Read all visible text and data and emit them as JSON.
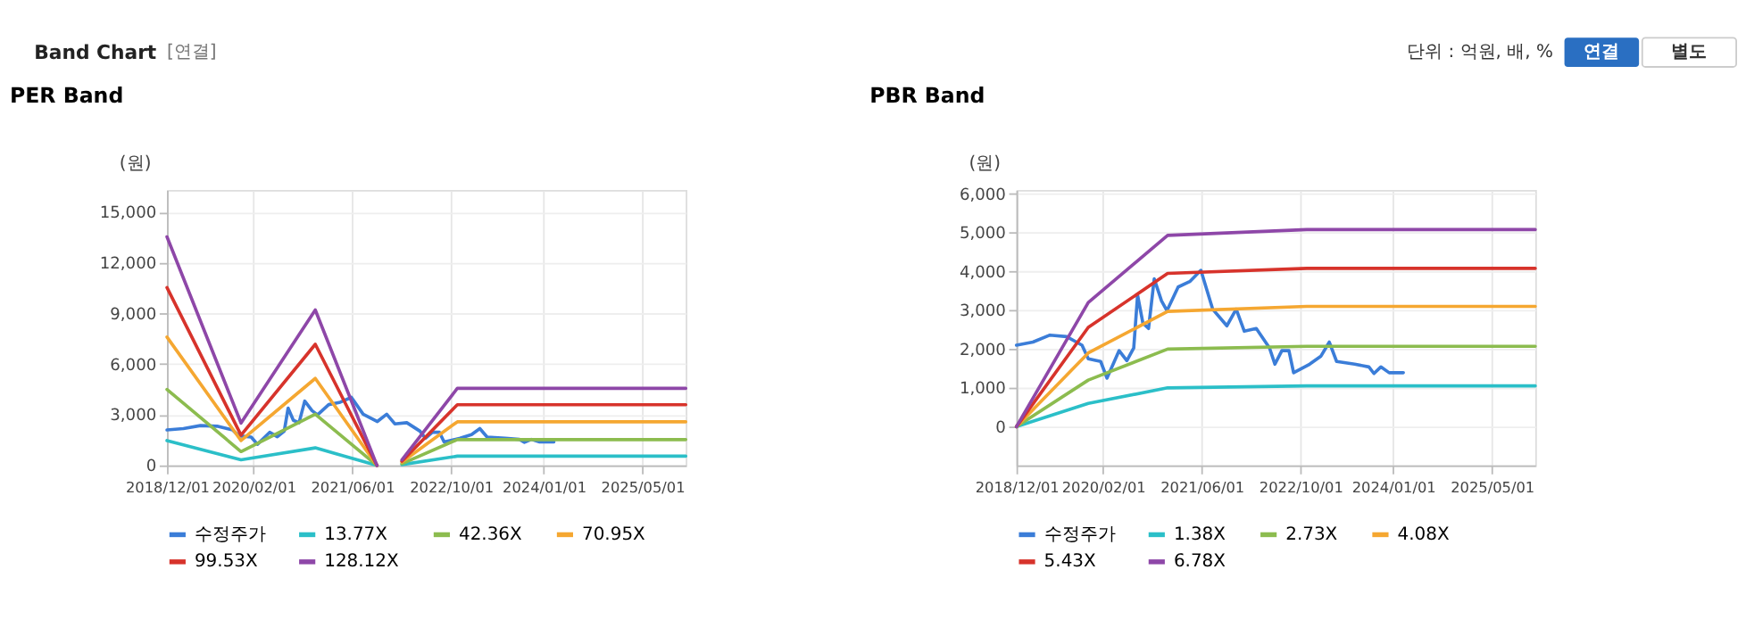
{
  "chart_data": [
    {
      "type": "line",
      "title": "PER Band",
      "ylabel": "(원)",
      "legend": "bottom",
      "grid": true,
      "annotations": [
        "Band Chart",
        "[연결]",
        "단위 : 억원, 배, %",
        "연결",
        "별도"
      ],
      "xlim": [
        "2018-12-01",
        "2025-12-01"
      ],
      "xticks": [
        {
          "value": "2018-12-01",
          "label": "2018/12/01"
        },
        {
          "value": "2020-02-01",
          "label": "2020/02/01"
        },
        {
          "value": "2021-06-01",
          "label": "2021/06/01"
        },
        {
          "value": "2022-10-01",
          "label": "2022/10/01"
        },
        {
          "value": "2024-01-01",
          "label": "2024/01/01"
        },
        {
          "value": "2025-05-01",
          "label": "2025/05/01"
        }
      ],
      "ylim": [
        0,
        16300
      ],
      "yticks": [
        {
          "value": 0,
          "label": "0"
        },
        {
          "value": 3000,
          "label": "3,000"
        },
        {
          "value": 6000,
          "label": "6,000"
        },
        {
          "value": 9000,
          "label": "9,000"
        },
        {
          "value": 12000,
          "label": "12,000"
        },
        {
          "value": 15000,
          "label": "15,000"
        }
      ],
      "series": [
        {
          "name": "수정주가",
          "color": "#3b7dd8",
          "x": [
            "2018-12-01",
            "2019-02-20",
            "2019-05-15",
            "2019-08-05",
            "2019-10-20",
            "2019-11-20",
            "2020-01-20",
            "2020-02-20",
            "2020-04-20",
            "2020-05-28",
            "2020-07-01",
            "2020-07-20",
            "2020-08-15",
            "2020-09-12",
            "2020-10-10",
            "2020-11-15",
            "2020-12-12",
            "2021-02-05",
            "2021-04-03",
            "2021-05-28",
            "2021-07-25",
            "2021-10-03",
            "2021-11-18",
            "2021-12-28",
            "2022-02-25",
            "2022-05-01",
            "2022-05-28",
            "2022-07-01",
            "2022-08-05",
            "2022-08-28",
            "2022-11-15",
            "2023-01-10",
            "2023-02-20",
            "2023-03-28",
            "2023-06-25",
            "2023-09-03",
            "2023-09-28",
            "2023-11-01",
            "2023-12-12",
            "2024-02-20"
          ],
          "values": [
            2100,
            2180,
            2360,
            2320,
            2100,
            1750,
            1680,
            1250,
            1960,
            1700,
            2030,
            3390,
            2670,
            2530,
            3810,
            3240,
            2990,
            3600,
            3740,
            4030,
            3030,
            2600,
            3030,
            2460,
            2530,
            2030,
            1610,
            1960,
            1960,
            1390,
            1610,
            1820,
            2180,
            1680,
            1610,
            1540,
            1370,
            1540,
            1390,
            1390
          ]
        },
        {
          "name": "13.77X",
          "color": "#2bbfc8",
          "x": [
            "2018-12-01",
            "2019-12-01",
            "2020-12-01",
            "2021-10-01",
            "2021-12-01",
            "2022-02-01",
            "2022-11-01",
            "2025-12-01"
          ],
          "values": [
            1470,
            330,
            1040,
            0,
            null,
            50,
            550,
            550
          ]
        },
        {
          "name": "42.36X",
          "color": "#8cbc4f",
          "x": [
            "2018-12-01",
            "2019-12-01",
            "2020-12-01",
            "2021-10-01",
            "2021-12-01",
            "2022-02-01",
            "2022-11-01",
            "2025-12-01"
          ],
          "values": [
            4500,
            820,
            3030,
            0,
            null,
            100,
            1530,
            1530
          ]
        },
        {
          "name": "70.95X",
          "color": "#f5a731",
          "x": [
            "2018-12-01",
            "2019-12-01",
            "2020-12-01",
            "2021-10-01",
            "2021-12-01",
            "2022-02-01",
            "2022-11-01",
            "2025-12-01"
          ],
          "values": [
            7600,
            1470,
            5150,
            0,
            null,
            200,
            2580,
            2580
          ]
        },
        {
          "name": "99.53X",
          "color": "#d7332b",
          "x": [
            "2018-12-01",
            "2019-12-01",
            "2020-12-01",
            "2021-10-01",
            "2021-12-01",
            "2022-02-01",
            "2022-11-01",
            "2025-12-01"
          ],
          "values": [
            10530,
            1790,
            7170,
            0,
            null,
            250,
            3590,
            3590
          ]
        },
        {
          "name": "128.12X",
          "color": "#8e47a8",
          "x": [
            "2018-12-01",
            "2019-12-01",
            "2020-12-01",
            "2021-10-01",
            "2021-12-01",
            "2022-02-01",
            "2022-11-01",
            "2025-12-01"
          ],
          "values": [
            13530,
            2510,
            9200,
            0,
            null,
            330,
            4560,
            4560
          ]
        }
      ]
    },
    {
      "type": "line",
      "title": "PBR Band",
      "ylabel": "(원)",
      "legend": "bottom",
      "grid": true,
      "xlim": [
        "2018-12-01",
        "2025-12-01"
      ],
      "xticks": [
        {
          "value": "2018-12-01",
          "label": "2018/12/01"
        },
        {
          "value": "2020-02-01",
          "label": "2020/02/01"
        },
        {
          "value": "2021-06-01",
          "label": "2021/06/01"
        },
        {
          "value": "2022-10-01",
          "label": "2022/10/01"
        },
        {
          "value": "2024-01-01",
          "label": "2024/01/01"
        },
        {
          "value": "2025-05-01",
          "label": "2025/05/01"
        }
      ],
      "ylim": [
        -1000,
        6100
      ],
      "yticks": [
        {
          "value": 0,
          "label": "0"
        },
        {
          "value": 1000,
          "label": "1,000"
        },
        {
          "value": 2000,
          "label": "2,000"
        },
        {
          "value": 3000,
          "label": "3,000"
        },
        {
          "value": 4000,
          "label": "4,000"
        },
        {
          "value": 5000,
          "label": "5,000"
        },
        {
          "value": 6000,
          "label": "6,000"
        }
      ],
      "series": [
        {
          "name": "수정주가",
          "color": "#3b7dd8",
          "x": [
            "2018-12-01",
            "2019-02-20",
            "2019-05-15",
            "2019-08-05",
            "2019-10-20",
            "2019-11-20",
            "2020-01-20",
            "2020-02-20",
            "2020-04-20",
            "2020-05-28",
            "2020-07-01",
            "2020-07-20",
            "2020-08-15",
            "2020-09-12",
            "2020-10-10",
            "2020-11-15",
            "2020-12-12",
            "2021-02-05",
            "2021-04-03",
            "2021-05-28",
            "2021-07-25",
            "2021-10-03",
            "2021-11-18",
            "2021-12-28",
            "2022-02-25",
            "2022-05-01",
            "2022-05-28",
            "2022-07-01",
            "2022-08-05",
            "2022-08-28",
            "2022-11-15",
            "2023-01-10",
            "2023-02-20",
            "2023-03-28",
            "2023-06-25",
            "2023-09-03",
            "2023-09-28",
            "2023-11-01",
            "2023-12-12",
            "2024-02-20"
          ],
          "values": [
            2100,
            2180,
            2360,
            2320,
            2100,
            1750,
            1680,
            1250,
            1960,
            1700,
            2030,
            3390,
            2670,
            2530,
            3810,
            3240,
            2990,
            3600,
            3740,
            4030,
            3030,
            2600,
            3030,
            2460,
            2530,
            2030,
            1610,
            1960,
            1960,
            1390,
            1610,
            1820,
            2180,
            1680,
            1610,
            1540,
            1370,
            1540,
            1390,
            1390
          ]
        },
        {
          "name": "1.38X",
          "color": "#2bbfc8",
          "x": [
            "2018-12-01",
            "2019-11-20",
            "2020-12-15",
            "2022-11-01",
            "2025-12-01"
          ],
          "values": [
            0,
            600,
            1000,
            1050,
            1050
          ]
        },
        {
          "name": "2.73X",
          "color": "#8cbc4f",
          "x": [
            "2018-12-01",
            "2019-11-20",
            "2020-12-15",
            "2022-11-01",
            "2025-12-01"
          ],
          "values": [
            0,
            1200,
            2000,
            2070,
            2070
          ]
        },
        {
          "name": "4.08X",
          "color": "#f5a731",
          "x": [
            "2018-12-01",
            "2019-11-20",
            "2020-12-15",
            "2022-11-01",
            "2025-12-01"
          ],
          "values": [
            0,
            1900,
            2970,
            3100,
            3100
          ]
        },
        {
          "name": "5.43X",
          "color": "#d7332b",
          "x": [
            "2018-12-01",
            "2019-11-20",
            "2020-12-15",
            "2022-11-01",
            "2025-12-01"
          ],
          "values": [
            0,
            2560,
            3950,
            4080,
            4080
          ]
        },
        {
          "name": "6.78X",
          "color": "#8e47a8",
          "x": [
            "2018-12-01",
            "2019-11-20",
            "2020-12-15",
            "2022-11-01",
            "2025-12-01"
          ],
          "values": [
            0,
            3200,
            4930,
            5080,
            5080
          ]
        }
      ]
    }
  ]
}
